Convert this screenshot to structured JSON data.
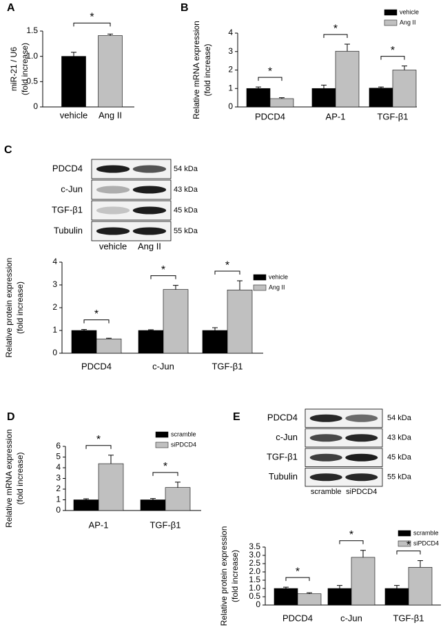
{
  "chart_data": [
    {
      "type": "bar",
      "panel": "A",
      "ylabel": [
        "miR-21 / U6",
        "(fold increase)"
      ],
      "categories": [
        "vehicle",
        "Ang II"
      ],
      "values": [
        1.0,
        1.41
      ],
      "errors": [
        0.08,
        0.03
      ],
      "colors": [
        "#000000",
        "#c0c0c0"
      ],
      "ylim": [
        0,
        1.5
      ],
      "yticks": [
        0,
        0.5,
        {
          "value": 1,
          "label": "1.0"
        },
        1.5
      ],
      "significance": "*"
    },
    {
      "type": "grouped-bar",
      "panel": "B",
      "ylabel": [
        "Relative mRNA expression",
        "(fold increase)"
      ],
      "categories": [
        "PDCD4",
        "AP-1",
        "TGF-β1"
      ],
      "series": [
        {
          "name": "vehicle",
          "color": "#000000",
          "values": [
            1.0,
            1.0,
            1.02
          ],
          "errors": [
            0.08,
            0.18,
            0.06
          ]
        },
        {
          "name": "Ang II",
          "color": "#c0c0c0",
          "values": [
            0.45,
            3.02,
            2.0
          ],
          "errors": [
            0.05,
            0.38,
            0.22
          ]
        }
      ],
      "ylim": [
        0,
        4
      ],
      "yticks": [
        0,
        1,
        2,
        3,
        4
      ],
      "significance": [
        "*",
        "*",
        "*"
      ]
    },
    {
      "type": "grouped-bar",
      "ylabel": [
        "Relative protein expression",
        "(fold increase)"
      ],
      "categories": [
        "PDCD4",
        "c-Jun",
        "TGF-β1"
      ],
      "series": [
        {
          "name": "vehicle",
          "color": "#000000",
          "values": [
            1.0,
            1.0,
            1.0
          ],
          "errors": [
            0.04,
            0.03,
            0.12
          ]
        },
        {
          "name": "Ang II",
          "color": "#c0c0c0",
          "values": [
            0.63,
            2.8,
            2.78
          ],
          "errors": [
            0.03,
            0.18,
            0.4
          ]
        }
      ],
      "ylim": [
        0,
        4
      ],
      "yticks": [
        0,
        1,
        2,
        3,
        4
      ],
      "significance": [
        "*",
        "*",
        "*"
      ]
    },
    {
      "type": "grouped-bar",
      "panel": "D",
      "ylabel": [
        "Relative mRNA expression",
        "(fold increase)"
      ],
      "categories": [
        "AP-1",
        "TGF-β1"
      ],
      "series": [
        {
          "name": "scramble",
          "color": "#000000",
          "values": [
            1.0,
            1.0
          ],
          "errors": [
            0.1,
            0.12
          ]
        },
        {
          "name": "siPDCD4",
          "color": "#c0c0c0",
          "values": [
            4.38,
            2.15
          ],
          "errors": [
            0.8,
            0.5
          ]
        }
      ],
      "ylim": [
        0,
        6
      ],
      "yticks": [
        0,
        1,
        2,
        3,
        4,
        5,
        6
      ],
      "significance": [
        "*",
        "*"
      ]
    },
    {
      "type": "grouped-bar",
      "ylabel": [
        "Relative protein expression",
        "(fold increase)"
      ],
      "categories": [
        "PDCD4",
        "c-Jun",
        "TGF-β1"
      ],
      "series": [
        {
          "name": "scramble",
          "color": "#000000",
          "values": [
            1.0,
            1.0,
            1.0
          ],
          "errors": [
            0.08,
            0.18,
            0.18
          ]
        },
        {
          "name": "siPDCD4",
          "color": "#c0c0c0",
          "values": [
            0.68,
            2.88,
            2.28
          ],
          "errors": [
            0.06,
            0.42,
            0.4
          ]
        }
      ],
      "ylim": [
        0,
        3.5
      ],
      "yticks": [
        0,
        0.5,
        {
          "value": 1,
          "label": "1.0"
        },
        1.5,
        {
          "value": 2,
          "label": "2.0"
        },
        2.5,
        {
          "value": 3,
          "label": "3.0"
        },
        3.5
      ],
      "significance": [
        "*",
        "*",
        "*"
      ]
    }
  ],
  "blots": [
    {
      "panel": "C",
      "rows": [
        {
          "label": "PDCD4",
          "size": "54 kDa"
        },
        {
          "label": "c-Jun",
          "size": "43 kDa"
        },
        {
          "label": "TGF-β1",
          "size": "45 kDa"
        },
        {
          "label": "Tubulin",
          "size": "55 kDa"
        }
      ],
      "lanes": [
        "vehicle",
        "Ang II"
      ]
    },
    {
      "panel": "E",
      "rows": [
        {
          "label": "PDCD4",
          "size": "54 kDa"
        },
        {
          "label": "c-Jun",
          "size": "43 kDa"
        },
        {
          "label": "TGF-β1",
          "size": "45 kDa"
        },
        {
          "label": "Tubulin",
          "size": "55 kDa"
        }
      ],
      "lanes": [
        "scramble",
        "siPDCD4"
      ]
    }
  ]
}
